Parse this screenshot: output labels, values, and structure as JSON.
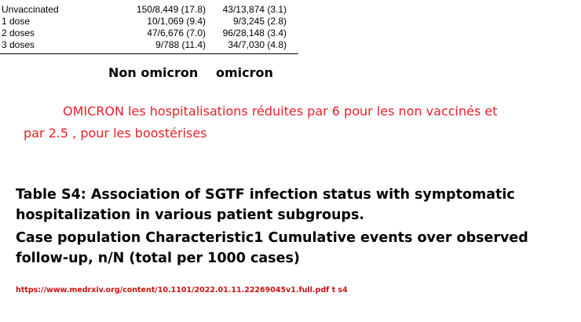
{
  "table": {
    "rows": [
      [
        "Unvaccinated",
        "150/8,449 (17.8)",
        "43/13,874 (3.1)"
      ],
      [
        "1 dose",
        "10/1,069 (9.4)",
        "9/3,245 (2.8)"
      ],
      [
        "2 doses",
        "47/6,676 (7.0)",
        "96/28,148 (3.4)"
      ],
      [
        "3 doses",
        "9/788 (11.4)",
        "34/7,030 (4.8)"
      ]
    ]
  },
  "headers": [
    "Non omicron",
    "omicron"
  ],
  "annotation": {
    "lines": [
      "OMICRON les hospitalisations réduites par 6 pour les non vaccinés et",
      "par 2.5 , pour les boostérises"
    ]
  },
  "caption": {
    "lines": [
      "Table S4: Association of SGTF infection status with symptomatic",
      "hospitalization in various patient subgroups.",
      "Case population Characteristic1 Cumulative events over observed",
      "follow-up, n/N (total per 1000 cases)"
    ]
  },
  "source": "https://www.medrxiv.org/content/10.1101/2022.01.11.22269045v1.full.pdf t s4"
}
